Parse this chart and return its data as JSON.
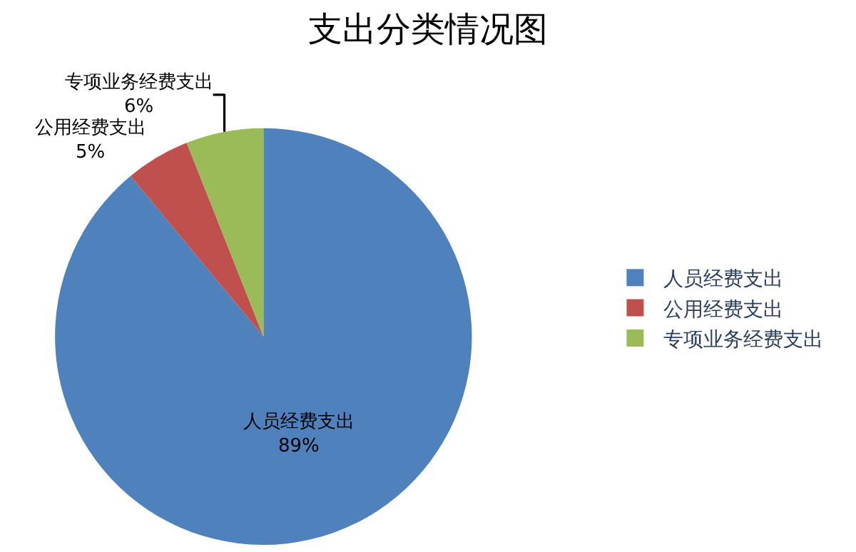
{
  "chart_data": {
    "type": "pie",
    "title": "支出分类情况图",
    "categories": [
      "人员经费支出",
      "公用经费支出",
      "专项业务经费支出"
    ],
    "values": [
      89,
      5,
      6
    ],
    "value_labels": [
      "89%",
      "5%",
      "6%"
    ],
    "colors": [
      "#4f81bd",
      "#c0504d",
      "#9bbb59"
    ],
    "legend": "right"
  }
}
